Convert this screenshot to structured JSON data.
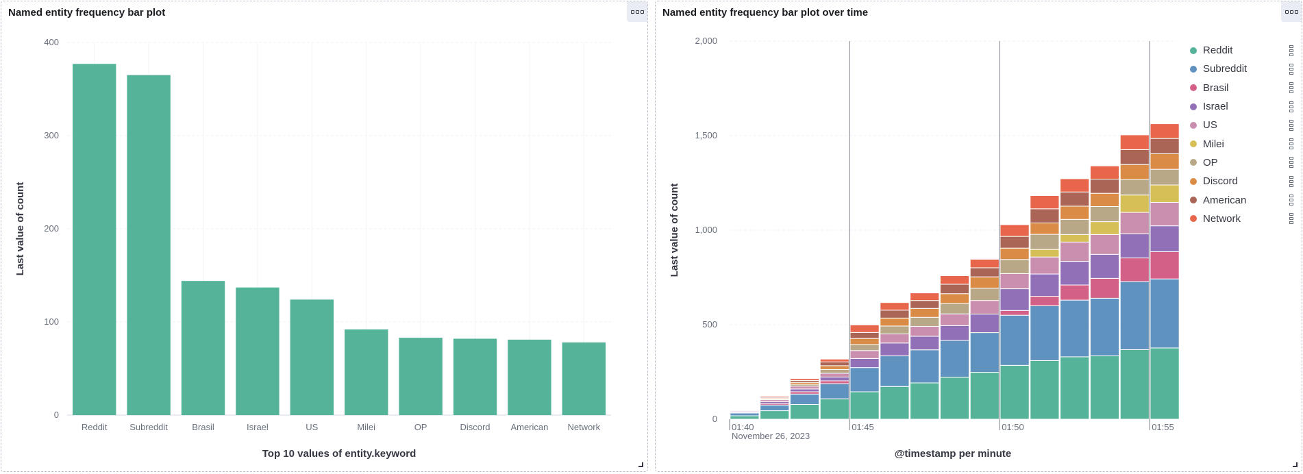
{
  "panels": [
    {
      "title": "Named entity frequency bar plot",
      "menu_icon": "ellipsis-icon",
      "chart_data": {
        "type": "bar",
        "title": "Named entity frequency bar plot",
        "xlabel": "Top 10 values of entity.keyword",
        "ylabel": "Last value of count",
        "ylim": [
          0,
          400
        ],
        "yticks": [
          0,
          100,
          200,
          300,
          400
        ],
        "categories": [
          "Reddit",
          "Subreddit",
          "Brasil",
          "Israel",
          "US",
          "Milei",
          "OP",
          "Discord",
          "American",
          "Network"
        ],
        "values": [
          377,
          365,
          144,
          137,
          124,
          92,
          83,
          82,
          81,
          78
        ],
        "color": "#54b399",
        "grid": true
      }
    },
    {
      "title": "Named entity frequency bar plot over time",
      "menu_icon": "ellipsis-icon",
      "chart_data": {
        "type": "bar",
        "stacked": true,
        "title": "Named entity frequency bar plot over time",
        "xlabel": "@timestamp per minute",
        "ylabel": "Last value of count",
        "ylim": [
          0,
          2000
        ],
        "yticks": [
          "0",
          "500",
          "1,000",
          "1,500",
          "2,000"
        ],
        "ytick_values": [
          0,
          500,
          1000,
          1500,
          2000
        ],
        "x_ticks": [
          {
            "label": "01:40",
            "date": "November 26, 2023",
            "bin": 0
          },
          {
            "label": "01:45",
            "bin": 4
          },
          {
            "label": "01:50",
            "bin": 9
          },
          {
            "label": "01:55",
            "bin": 14
          }
        ],
        "categories": [
          "01:40",
          "01:41",
          "01:42",
          "01:43",
          "01:44",
          "01:45",
          "01:46",
          "01:47",
          "01:48",
          "01:49",
          "01:50",
          "01:51",
          "01:52",
          "01:53",
          "01:54"
        ],
        "legend_position": "right",
        "series": [
          {
            "name": "Reddit",
            "color": "#54b399",
            "values": [
              18,
              45,
              78,
              108,
              145,
              173,
              192,
              222,
              248,
              285,
              310,
              330,
              335,
              368,
              377
            ]
          },
          {
            "name": "Subreddit",
            "color": "#6092c0",
            "values": [
              15,
              30,
              55,
              80,
              128,
              162,
              175,
              195,
              210,
              265,
              290,
              300,
              305,
              360,
              365
            ]
          },
          {
            "name": "Brasil",
            "color": "#d36086",
            "values": [
              3,
              8,
              12,
              15,
              0,
              0,
              0,
              0,
              0,
              25,
              50,
              80,
              105,
              125,
              144
            ]
          },
          {
            "name": "Israel",
            "color": "#9170b8",
            "values": [
              5,
              10,
              15,
              20,
              48,
              68,
              72,
              78,
              98,
              115,
              118,
              125,
              127,
              128,
              137
            ]
          },
          {
            "name": "US",
            "color": "#ca8eae",
            "values": [
              5,
              10,
              15,
              20,
              42,
              48,
              52,
              62,
              72,
              80,
              90,
              102,
              105,
              113,
              124
            ]
          },
          {
            "name": "Milei",
            "color": "#d6bf57",
            "values": [
              0,
              0,
              0,
              0,
              0,
              0,
              0,
              0,
              0,
              0,
              40,
              40,
              68,
              92,
              92
            ]
          },
          {
            "name": "OP",
            "color": "#b9a888",
            "values": [
              3,
              5,
              10,
              20,
              32,
              42,
              48,
              55,
              65,
              75,
              80,
              80,
              80,
              82,
              83
            ]
          },
          {
            "name": "Discord",
            "color": "#da8b45",
            "values": [
              3,
              5,
              10,
              20,
              32,
              42,
              47,
              52,
              60,
              60,
              60,
              70,
              70,
              79,
              82
            ]
          },
          {
            "name": "American",
            "color": "#aa6556",
            "values": [
              2,
              5,
              10,
              20,
              32,
              42,
              42,
              50,
              48,
              62,
              75,
              75,
              75,
              79,
              81
            ]
          },
          {
            "name": "Network",
            "color": "#e7664c",
            "values": [
              2,
              5,
              10,
              15,
              40,
              40,
              40,
              45,
              45,
              62,
              70,
              70,
              70,
              78,
              78
            ]
          }
        ]
      }
    }
  ]
}
